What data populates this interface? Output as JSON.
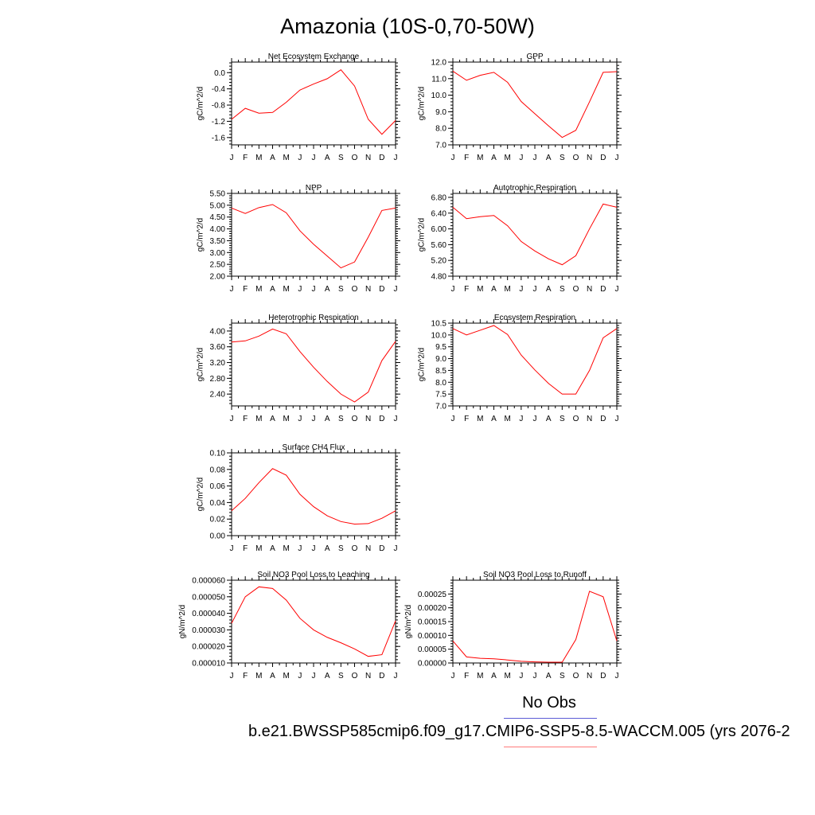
{
  "title": "Amazonia (10S-0,70-50W)",
  "legend": {
    "obs_label": "No Obs",
    "model_label": "b.e21.BWSSP585cmip6.f09_g17.CMIP6-SSP5-8.5-WACCM.005 (yrs 2076-2",
    "obs_color": "#5b5bd6",
    "model_color": "#ff7a7a",
    "line_color": "#ff0000"
  },
  "chart_data": [
    {
      "type": "line",
      "title": "Net Ecosystem Exchange",
      "ylabel": "gC/m^2/d",
      "categories": [
        "J",
        "F",
        "M",
        "A",
        "M",
        "J",
        "J",
        "A",
        "S",
        "O",
        "N",
        "D",
        "J"
      ],
      "values": [
        -1.15,
        -0.88,
        -1.0,
        -0.98,
        -0.73,
        -0.43,
        -0.28,
        -0.15,
        0.07,
        -0.33,
        -1.15,
        -1.52,
        -1.18
      ],
      "ylim": [
        -1.78,
        0.26
      ],
      "yticks": [
        -1.6,
        -1.2,
        -0.8,
        -0.4,
        0.0
      ],
      "yticklabels": [
        "-1.6",
        "-1.2",
        "-0.8",
        "-0.4",
        "0.0"
      ]
    },
    {
      "type": "line",
      "title": "GPP",
      "ylabel": "gC/m^2/d",
      "categories": [
        "J",
        "F",
        "M",
        "A",
        "M",
        "J",
        "J",
        "A",
        "S",
        "O",
        "N",
        "D",
        "J"
      ],
      "values": [
        11.45,
        10.9,
        11.2,
        11.38,
        10.78,
        9.62,
        8.88,
        8.15,
        7.45,
        7.88,
        9.6,
        11.38,
        11.42
      ],
      "ylim": [
        7.0,
        12.0
      ],
      "yticks": [
        7.0,
        8.0,
        9.0,
        10.0,
        11.0,
        12.0
      ],
      "yticklabels": [
        "7.0",
        "8.0",
        "9.0",
        "10.0",
        "11.0",
        "12.0"
      ]
    },
    {
      "type": "line",
      "title": "NPP",
      "ylabel": "gC/m^2/d",
      "categories": [
        "J",
        "F",
        "M",
        "A",
        "M",
        "J",
        "J",
        "A",
        "S",
        "O",
        "N",
        "D",
        "J"
      ],
      "values": [
        4.88,
        4.65,
        4.9,
        5.03,
        4.68,
        3.92,
        3.35,
        2.85,
        2.35,
        2.6,
        3.65,
        4.78,
        4.88
      ],
      "ylim": [
        2.0,
        5.5
      ],
      "yticks": [
        2.0,
        2.5,
        3.0,
        3.5,
        4.0,
        4.5,
        5.0,
        5.5
      ],
      "yticklabels": [
        "2.00",
        "2.50",
        "3.00",
        "3.50",
        "4.00",
        "4.50",
        "5.00",
        "5.50"
      ]
    },
    {
      "type": "line",
      "title": "Autotrophic Respiration",
      "ylabel": "gC/m^2/d",
      "categories": [
        "J",
        "F",
        "M",
        "A",
        "M",
        "J",
        "J",
        "A",
        "S",
        "O",
        "N",
        "D",
        "J"
      ],
      "values": [
        6.55,
        6.26,
        6.31,
        6.34,
        6.08,
        5.68,
        5.44,
        5.24,
        5.09,
        5.32,
        6.0,
        6.63,
        6.55
      ],
      "ylim": [
        4.8,
        6.9
      ],
      "yticks": [
        4.8,
        5.2,
        5.6,
        6.0,
        6.4,
        6.8
      ],
      "yticklabels": [
        "4.80",
        "5.20",
        "5.60",
        "6.00",
        "6.40",
        "6.80"
      ]
    },
    {
      "type": "line",
      "title": "Heterotrophic Respiration",
      "ylabel": "gC/m^2/d",
      "categories": [
        "J",
        "F",
        "M",
        "A",
        "M",
        "J",
        "J",
        "A",
        "S",
        "O",
        "N",
        "D",
        "J"
      ],
      "values": [
        3.72,
        3.75,
        3.87,
        4.05,
        3.93,
        3.48,
        3.08,
        2.72,
        2.4,
        2.2,
        2.45,
        3.25,
        3.74
      ],
      "ylim": [
        2.1,
        4.2
      ],
      "yticks": [
        2.4,
        2.8,
        3.2,
        3.6,
        4.0
      ],
      "yticklabels": [
        "2.40",
        "2.80",
        "3.20",
        "3.60",
        "4.00"
      ]
    },
    {
      "type": "line",
      "title": "Ecosystem Respiration",
      "ylabel": "gC/m^2/d",
      "categories": [
        "J",
        "F",
        "M",
        "A",
        "M",
        "J",
        "J",
        "A",
        "S",
        "O",
        "N",
        "D",
        "J"
      ],
      "values": [
        10.27,
        10.0,
        10.2,
        10.4,
        10.02,
        9.15,
        8.52,
        7.95,
        7.5,
        7.5,
        8.5,
        9.88,
        10.27
      ],
      "ylim": [
        7.0,
        10.5
      ],
      "yticks": [
        7.0,
        7.5,
        8.0,
        8.5,
        9.0,
        9.5,
        10.0,
        10.5
      ],
      "yticklabels": [
        "7.0",
        "7.5",
        "8.0",
        "8.5",
        "9.0",
        "9.5",
        "10.0",
        "10.5"
      ]
    },
    {
      "type": "line",
      "title": "Surface CH4 Flux",
      "ylabel": "gC/m^2/d",
      "categories": [
        "J",
        "F",
        "M",
        "A",
        "M",
        "J",
        "J",
        "A",
        "S",
        "O",
        "N",
        "D",
        "J"
      ],
      "values": [
        0.03,
        0.045,
        0.064,
        0.081,
        0.073,
        0.05,
        0.035,
        0.024,
        0.017,
        0.014,
        0.0145,
        0.021,
        0.03
      ],
      "ylim": [
        0.0,
        0.1
      ],
      "yticks": [
        0.0,
        0.02,
        0.04,
        0.06,
        0.08,
        0.1
      ],
      "yticklabels": [
        "0.00",
        "0.02",
        "0.04",
        "0.06",
        "0.08",
        "0.10"
      ]
    },
    {
      "type": "line",
      "title": "Soil NO3 Pool Loss to Leaching",
      "ylabel": "gN/m^2/d",
      "categories": [
        "J",
        "F",
        "M",
        "A",
        "M",
        "J",
        "J",
        "A",
        "S",
        "O",
        "N",
        "D",
        "J"
      ],
      "values": [
        3.4e-05,
        5e-05,
        5.6e-05,
        5.5e-05,
        4.8e-05,
        3.7e-05,
        3e-05,
        2.55e-05,
        2.22e-05,
        1.85e-05,
        1.4e-05,
        1.5e-05,
        3.55e-05
      ],
      "ylim": [
        1e-05,
        6e-05
      ],
      "yticks": [
        1e-05,
        2e-05,
        3e-05,
        4e-05,
        5e-05,
        6e-05
      ],
      "yticklabels": [
        "0.000010",
        "0.000020",
        "0.000030",
        "0.000040",
        "0.000050",
        "0.000060"
      ]
    },
    {
      "type": "line",
      "title": "Soil NO3 Pool Loss to Runoff",
      "ylabel": "gN/m^2/d",
      "categories": [
        "J",
        "F",
        "M",
        "A",
        "M",
        "J",
        "J",
        "A",
        "S",
        "O",
        "N",
        "D",
        "J"
      ],
      "values": [
        8e-05,
        2.2e-05,
        1.7e-05,
        1.5e-05,
        1.1e-05,
        6e-06,
        4e-06,
        3e-06,
        3e-06,
        8.5e-05,
        0.00026,
        0.00024,
        8e-05
      ],
      "ylim": [
        0.0,
        0.0003
      ],
      "yticks": [
        0.0,
        5e-05,
        0.0001,
        0.00015,
        0.0002,
        0.00025
      ],
      "yticklabels": [
        "0.00000",
        "0.00005",
        "0.00010",
        "0.00015",
        "0.00020",
        "0.00025"
      ]
    }
  ]
}
